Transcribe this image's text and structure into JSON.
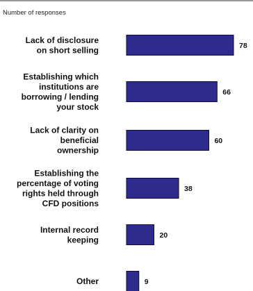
{
  "chart_data": {
    "type": "bar",
    "orientation": "horizontal",
    "subtitle": "Number of responses",
    "categories": [
      [
        "Lack of disclosure",
        "on short selling"
      ],
      [
        "Establishing which",
        "institutions are",
        "borrowing / lending",
        "your stock"
      ],
      [
        "Lack of clarity on",
        "beneficial",
        "ownership"
      ],
      [
        "Establishing the",
        "percentage of voting",
        "rights held through",
        "CFD positions"
      ],
      [
        "Internal record",
        "keeping"
      ],
      [
        "Other"
      ]
    ],
    "values": [
      78,
      66,
      60,
      38,
      20,
      9
    ],
    "xlim": [
      0,
      78
    ],
    "grid": false,
    "bar_color": "#2e2b8c"
  }
}
